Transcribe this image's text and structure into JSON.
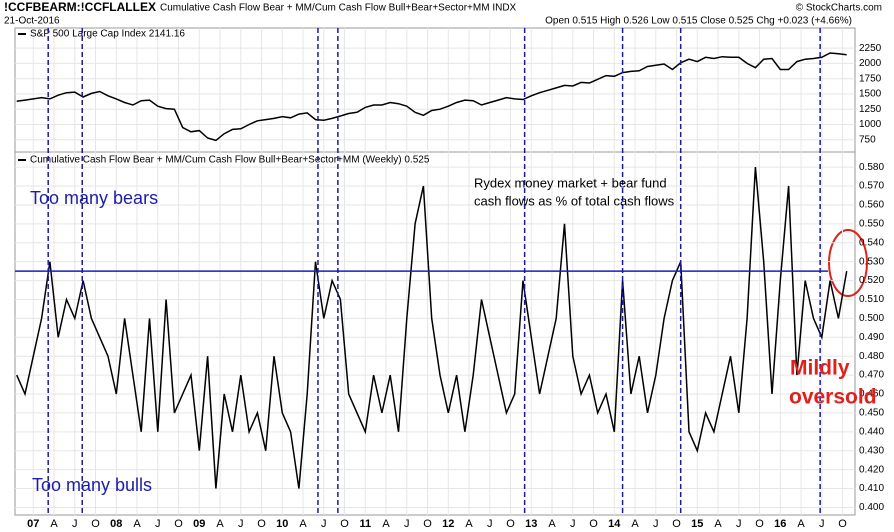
{
  "header": {
    "symbol": "!CCFBEARM:!CCFLALLEX",
    "description": "Cumulative Cash Flow Bear + MM/Cum Cash Flow Bull+Bear+Sector+MM INDX",
    "date": "21-Oct-2016",
    "stats": "Open 0.515 High 0.526 Low 0.515 Close 0.525 Chg +0.023 (+4.66%)",
    "copyright": "© StockCharts.com"
  },
  "chart_data": [
    {
      "type": "line",
      "ylim": [
        550,
        2580
      ],
      "yticks": [
        750,
        1000,
        1250,
        1500,
        1750,
        2000,
        2250
      ],
      "grid": true,
      "series": [
        {
          "name": "S&P 500 Large Cap Index 2141.16",
          "color": "#000000",
          "values": [
            1380,
            1400,
            1420,
            1440,
            1420,
            1480,
            1520,
            1530,
            1450,
            1510,
            1540,
            1470,
            1420,
            1360,
            1320,
            1390,
            1400,
            1300,
            1260,
            1250,
            950,
            880,
            900,
            780,
            740,
            850,
            920,
            930,
            1000,
            1060,
            1080,
            1100,
            1130,
            1110,
            1170,
            1190,
            1080,
            1070,
            1100,
            1140,
            1180,
            1200,
            1280,
            1320,
            1320,
            1360,
            1340,
            1300,
            1200,
            1150,
            1230,
            1250,
            1300,
            1360,
            1400,
            1390,
            1320,
            1360,
            1400,
            1440,
            1420,
            1410,
            1470,
            1520,
            1560,
            1600,
            1640,
            1630,
            1690,
            1680,
            1740,
            1800,
            1790,
            1850,
            1870,
            1880,
            1950,
            1970,
            1990,
            1900,
            2010,
            2070,
            2030,
            2100,
            2080,
            2110,
            2100,
            2100,
            2000,
            1930,
            2070,
            2080,
            1900,
            1900,
            2030,
            2070,
            2080,
            2100,
            2170,
            2160,
            2141.16
          ]
        }
      ]
    },
    {
      "type": "line",
      "ylim": [
        0.396,
        0.588
      ],
      "grid": true,
      "x": [
        2006.8,
        2006.9,
        2007,
        2007.1,
        2007.2,
        2007.3,
        2007.4,
        2007.5,
        2007.6,
        2007.7,
        2007.8,
        2007.9,
        2008,
        2008.1,
        2008.2,
        2008.3,
        2008.4,
        2008.5,
        2008.6,
        2008.7,
        2008.8,
        2008.9,
        2009,
        2009.1,
        2009.2,
        2009.3,
        2009.4,
        2009.5,
        2009.6,
        2009.7,
        2009.8,
        2009.9,
        2010,
        2010.1,
        2010.2,
        2010.3,
        2010.4,
        2010.5,
        2010.6,
        2010.7,
        2010.8,
        2010.9,
        2011,
        2011.1,
        2011.2,
        2011.3,
        2011.4,
        2011.5,
        2011.6,
        2011.7,
        2011.8,
        2011.9,
        2012,
        2012.1,
        2012.2,
        2012.3,
        2012.4,
        2012.5,
        2012.6,
        2012.7,
        2012.8,
        2012.9,
        2013,
        2013.1,
        2013.2,
        2013.3,
        2013.4,
        2013.5,
        2013.6,
        2013.7,
        2013.8,
        2013.9,
        2014,
        2014.1,
        2014.2,
        2014.3,
        2014.4,
        2014.5,
        2014.6,
        2014.7,
        2014.8,
        2014.9,
        2015,
        2015.1,
        2015.2,
        2015.3,
        2015.4,
        2015.5,
        2015.6,
        2015.7,
        2015.8,
        2015.9,
        2016,
        2016.1,
        2016.2,
        2016.3,
        2016.4,
        2016.5,
        2016.6,
        2016.7,
        2016.8
      ],
      "xlim": [
        2006.78,
        2016.9
      ],
      "xticks": [
        {
          "value": 2007,
          "label": "07"
        },
        {
          "value": 2007.25,
          "label": "A"
        },
        {
          "value": 2007.5,
          "label": "J"
        },
        {
          "value": 2007.75,
          "label": "O"
        },
        {
          "value": 2008,
          "label": "08"
        },
        {
          "value": 2008.25,
          "label": "A"
        },
        {
          "value": 2008.5,
          "label": "J"
        },
        {
          "value": 2008.75,
          "label": "O"
        },
        {
          "value": 2009,
          "label": "09"
        },
        {
          "value": 2009.25,
          "label": "A"
        },
        {
          "value": 2009.5,
          "label": "J"
        },
        {
          "value": 2009.75,
          "label": "O"
        },
        {
          "value": 2010,
          "label": "10"
        },
        {
          "value": 2010.25,
          "label": "A"
        },
        {
          "value": 2010.5,
          "label": "J"
        },
        {
          "value": 2010.75,
          "label": "O"
        },
        {
          "value": 2011,
          "label": "11"
        },
        {
          "value": 2011.25,
          "label": "A"
        },
        {
          "value": 2011.5,
          "label": "J"
        },
        {
          "value": 2011.75,
          "label": "O"
        },
        {
          "value": 2012,
          "label": "12"
        },
        {
          "value": 2012.25,
          "label": "A"
        },
        {
          "value": 2012.5,
          "label": "J"
        },
        {
          "value": 2012.75,
          "label": "O"
        },
        {
          "value": 2013,
          "label": "13"
        },
        {
          "value": 2013.25,
          "label": "A"
        },
        {
          "value": 2013.5,
          "label": "J"
        },
        {
          "value": 2013.75,
          "label": "O"
        },
        {
          "value": 2014,
          "label": "14"
        },
        {
          "value": 2014.25,
          "label": "A"
        },
        {
          "value": 2014.5,
          "label": "J"
        },
        {
          "value": 2014.75,
          "label": "O"
        },
        {
          "value": 2015,
          "label": "15"
        },
        {
          "value": 2015.25,
          "label": "A"
        },
        {
          "value": 2015.5,
          "label": "J"
        },
        {
          "value": 2015.75,
          "label": "O"
        },
        {
          "value": 2016,
          "label": "16"
        },
        {
          "value": 2016.25,
          "label": "A"
        },
        {
          "value": 2016.5,
          "label": "J"
        },
        {
          "value": 2016.75,
          "label": "O"
        }
      ],
      "yticks": [
        {
          "value": 0.4,
          "label": "0.400"
        },
        {
          "value": 0.41,
          "label": "0.410"
        },
        {
          "value": 0.42,
          "label": "0.420"
        },
        {
          "value": 0.43,
          "label": "0.430"
        },
        {
          "value": 0.44,
          "label": "0.440"
        },
        {
          "value": 0.45,
          "label": "0.450"
        },
        {
          "value": 0.46,
          "label": "0.460"
        },
        {
          "value": 0.47,
          "label": "0.470"
        },
        {
          "value": 0.48,
          "label": "0.480"
        },
        {
          "value": 0.49,
          "label": "0.490"
        },
        {
          "value": 0.5,
          "label": "0.500"
        },
        {
          "value": 0.51,
          "label": "0.510"
        },
        {
          "value": 0.52,
          "label": "0.520"
        },
        {
          "value": 0.53,
          "label": "0.530"
        },
        {
          "value": 0.54,
          "label": "0.540"
        },
        {
          "value": 0.55,
          "label": "0.550"
        },
        {
          "value": 0.56,
          "label": "0.560"
        },
        {
          "value": 0.57,
          "label": "0.570"
        },
        {
          "value": 0.58,
          "label": "0.580"
        }
      ],
      "threshold": 0.525,
      "threshold_color": "#1a1acc",
      "vlines": [
        2007.18,
        2007.59,
        2010.43,
        2010.67,
        2012.92,
        2014.1,
        2014.8,
        2016.48
      ],
      "vline_color": "#1a1aa0",
      "series": [
        {
          "name": "Cumulative Cash Flow Bear + MM/Cum Cash Flow Bull+Bear+Sector+MM (Weekly) 0.525",
          "color": "#000000",
          "values": [
            0.47,
            0.46,
            0.48,
            0.5,
            0.53,
            0.49,
            0.51,
            0.5,
            0.52,
            0.5,
            0.49,
            0.48,
            0.46,
            0.5,
            0.47,
            0.44,
            0.5,
            0.44,
            0.51,
            0.45,
            0.46,
            0.47,
            0.43,
            0.48,
            0.41,
            0.46,
            0.44,
            0.47,
            0.44,
            0.45,
            0.43,
            0.48,
            0.45,
            0.44,
            0.41,
            0.46,
            0.53,
            0.5,
            0.52,
            0.51,
            0.46,
            0.45,
            0.44,
            0.47,
            0.45,
            0.47,
            0.44,
            0.5,
            0.55,
            0.57,
            0.5,
            0.47,
            0.45,
            0.47,
            0.44,
            0.47,
            0.51,
            0.49,
            0.47,
            0.45,
            0.46,
            0.52,
            0.49,
            0.46,
            0.48,
            0.5,
            0.55,
            0.48,
            0.46,
            0.47,
            0.45,
            0.46,
            0.44,
            0.52,
            0.46,
            0.48,
            0.45,
            0.47,
            0.5,
            0.52,
            0.53,
            0.44,
            0.43,
            0.45,
            0.44,
            0.46,
            0.48,
            0.45,
            0.5,
            0.58,
            0.53,
            0.46,
            0.52,
            0.57,
            0.47,
            0.52,
            0.5,
            0.49,
            0.52,
            0.5,
            0.525
          ]
        }
      ],
      "annotations": [
        {
          "text": "Too many bears",
          "color": "#1c1ca8"
        },
        {
          "text": "Too many bulls",
          "color": "#1c1ca8"
        },
        {
          "text": "Rydex money market + bear fund",
          "color": "#000000"
        },
        {
          "text": "cash flows as % of total cash flows",
          "color": "#000000"
        },
        {
          "text": "Mildly",
          "color": "#e0201b"
        },
        {
          "text": "oversold",
          "color": "#e0201b"
        }
      ]
    }
  ]
}
